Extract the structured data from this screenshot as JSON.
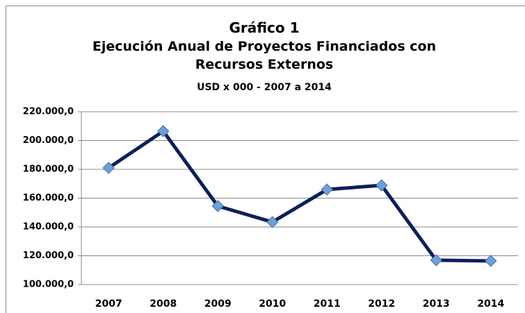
{
  "chart_data": {
    "type": "line",
    "title": "Gráfico 1",
    "subtitle": "Ejecución Anual de Proyectos Financiados con Recursos Externos",
    "note": "USD x 000 - 2007 a 2014",
    "categories": [
      "2007",
      "2008",
      "2009",
      "2010",
      "2011",
      "2012",
      "2013",
      "2014"
    ],
    "series": [
      {
        "color": "#0c1f5c",
        "marker_color": "#6e9fd6",
        "values": [
          181000,
          206500,
          154500,
          143400,
          166000,
          168900,
          116900,
          116400
        ]
      }
    ],
    "ylim": [
      100000,
      220000
    ],
    "yticks": [
      {
        "value": 100000,
        "label": "100.000,0"
      },
      {
        "value": 120000,
        "label": "120.000,0"
      },
      {
        "value": 140000,
        "label": "140.000,0"
      },
      {
        "value": 160000,
        "label": "160.000,0"
      },
      {
        "value": 180000,
        "label": "180.000,0"
      },
      {
        "value": 200000,
        "label": "200.000,0"
      },
      {
        "value": 220000,
        "label": "220.000,0"
      }
    ],
    "grid": true
  }
}
